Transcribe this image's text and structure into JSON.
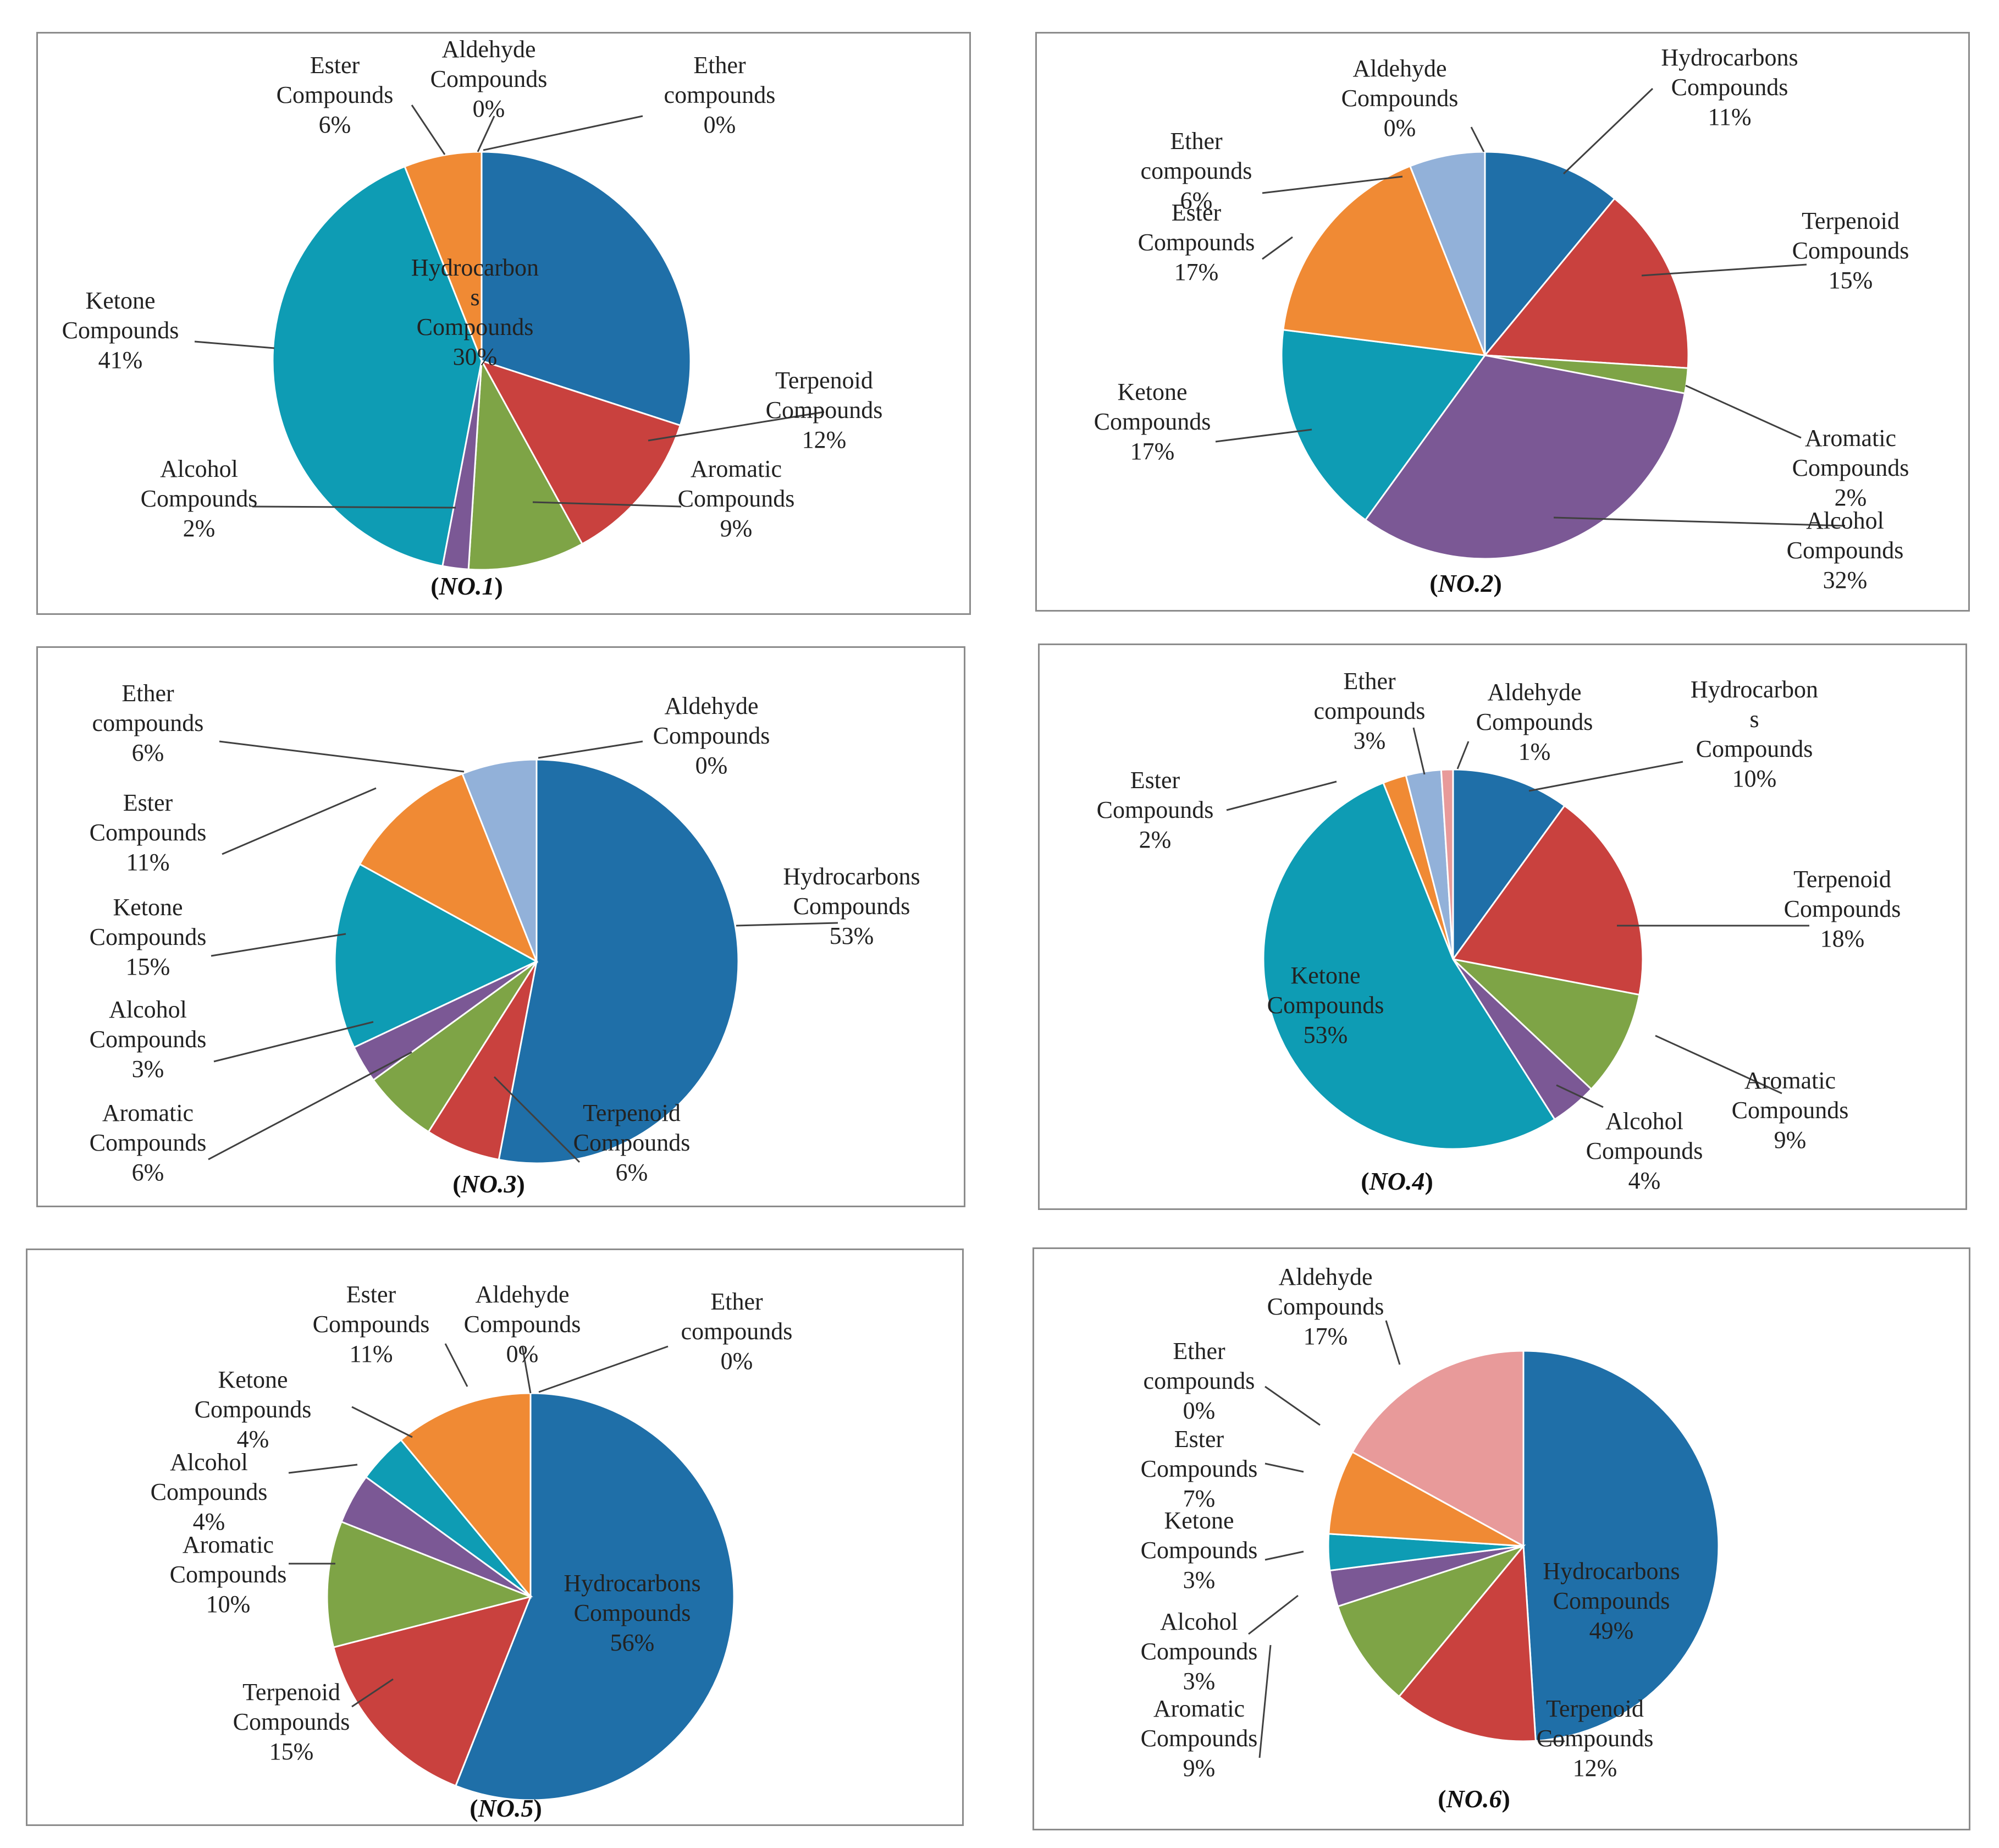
{
  "colors": {
    "Hydrocarbons Compounds": "#1f6fa8",
    "Terpenoid Compounds": "#c9413e",
    "Aromatic Compounds": "#7ea446",
    "Alcohol Compounds": "#7b5895",
    "Ketone Compounds": "#0e9cb4",
    "Ester Compounds": "#f08a34",
    "Ether compounds": "#92b1d9",
    "Aldehyde Compounds": "#e89a9a"
  },
  "chart_data": [
    {
      "type": "pie",
      "caption_prefix": "(",
      "caption_label": "NO.1",
      "caption_suffix": ")",
      "slices": [
        {
          "name": "Hydrocarbons Compounds",
          "label_lines": [
            "Hydrocarbon",
            "s",
            "Compounds"
          ],
          "value": 30,
          "pct": "30%"
        },
        {
          "name": "Terpenoid Compounds",
          "label_lines": [
            "Terpenoid",
            "Compounds"
          ],
          "value": 12,
          "pct": "12%"
        },
        {
          "name": "Aromatic Compounds",
          "label_lines": [
            "Aromatic",
            "Compounds"
          ],
          "value": 9,
          "pct": "9%"
        },
        {
          "name": "Alcohol Compounds",
          "label_lines": [
            "Alcohol",
            "Compounds"
          ],
          "value": 2,
          "pct": "2%"
        },
        {
          "name": "Ketone Compounds",
          "label_lines": [
            "Ketone",
            "Compounds"
          ],
          "value": 41,
          "pct": "41%"
        },
        {
          "name": "Ester Compounds",
          "label_lines": [
            "Ester",
            "Compounds"
          ],
          "value": 6,
          "pct": "6%"
        },
        {
          "name": "Aldehyde Compounds",
          "label_lines": [
            "Aldehyde",
            "Compounds"
          ],
          "value": 0,
          "pct": "0%"
        },
        {
          "name": "Ether compounds",
          "label_lines": [
            "Ether",
            "compounds"
          ],
          "value": 0,
          "pct": "0%"
        }
      ]
    },
    {
      "type": "pie",
      "caption_prefix": "(",
      "caption_label": "NO.2",
      "caption_suffix": ")",
      "slices": [
        {
          "name": "Hydrocarbons Compounds",
          "label_lines": [
            "Hydrocarbons",
            "Compounds"
          ],
          "value": 11,
          "pct": "11%"
        },
        {
          "name": "Terpenoid Compounds",
          "label_lines": [
            "Terpenoid",
            "Compounds"
          ],
          "value": 15,
          "pct": "15%"
        },
        {
          "name": "Aromatic Compounds",
          "label_lines": [
            "Aromatic",
            "Compounds"
          ],
          "value": 2,
          "pct": "2%"
        },
        {
          "name": "Alcohol Compounds",
          "label_lines": [
            "Alcohol",
            "Compounds"
          ],
          "value": 32,
          "pct": "32%"
        },
        {
          "name": "Ketone Compounds",
          "label_lines": [
            "Ketone",
            "Compounds"
          ],
          "value": 17,
          "pct": "17%"
        },
        {
          "name": "Ester Compounds",
          "label_lines": [
            "Ester",
            "Compounds"
          ],
          "value": 17,
          "pct": "17%"
        },
        {
          "name": "Ether compounds",
          "label_lines": [
            "Ether",
            "compounds"
          ],
          "value": 6,
          "pct": "6%"
        },
        {
          "name": "Aldehyde Compounds",
          "label_lines": [
            "Aldehyde",
            "Compounds"
          ],
          "value": 0,
          "pct": "0%"
        }
      ]
    },
    {
      "type": "pie",
      "caption_prefix": "(",
      "caption_label": "NO.3",
      "caption_suffix": ")",
      "slices": [
        {
          "name": "Hydrocarbons Compounds",
          "label_lines": [
            "Hydrocarbons",
            "Compounds"
          ],
          "value": 53,
          "pct": "53%"
        },
        {
          "name": "Terpenoid Compounds",
          "label_lines": [
            "Terpenoid",
            "Compounds"
          ],
          "value": 6,
          "pct": "6%"
        },
        {
          "name": "Aromatic Compounds",
          "label_lines": [
            "Aromatic",
            "Compounds"
          ],
          "value": 6,
          "pct": "6%"
        },
        {
          "name": "Alcohol Compounds",
          "label_lines": [
            "Alcohol",
            "Compounds"
          ],
          "value": 3,
          "pct": "3%"
        },
        {
          "name": "Ketone Compounds",
          "label_lines": [
            "Ketone",
            "Compounds"
          ],
          "value": 15,
          "pct": "15%"
        },
        {
          "name": "Ester Compounds",
          "label_lines": [
            "Ester",
            "Compounds"
          ],
          "value": 11,
          "pct": "11%"
        },
        {
          "name": "Ether compounds",
          "label_lines": [
            "Ether",
            "compounds"
          ],
          "value": 6,
          "pct": "6%"
        },
        {
          "name": "Aldehyde Compounds",
          "label_lines": [
            "Aldehyde",
            "Compounds"
          ],
          "value": 0,
          "pct": "0%"
        }
      ]
    },
    {
      "type": "pie",
      "caption_prefix": "(",
      "caption_label": "NO.4",
      "caption_suffix": ")",
      "slices": [
        {
          "name": "Hydrocarbons Compounds",
          "label_lines": [
            "Hydrocarbon",
            "s",
            "Compounds"
          ],
          "value": 10,
          "pct": "10%"
        },
        {
          "name": "Terpenoid Compounds",
          "label_lines": [
            "Terpenoid",
            "Compounds"
          ],
          "value": 18,
          "pct": "18%"
        },
        {
          "name": "Aromatic Compounds",
          "label_lines": [
            "Aromatic",
            "Compounds"
          ],
          "value": 9,
          "pct": "9%"
        },
        {
          "name": "Alcohol Compounds",
          "label_lines": [
            "Alcohol",
            "Compounds"
          ],
          "value": 4,
          "pct": "4%"
        },
        {
          "name": "Ketone Compounds",
          "label_lines": [
            "Ketone",
            "Compounds"
          ],
          "value": 53,
          "pct": "53%"
        },
        {
          "name": "Ester Compounds",
          "label_lines": [
            "Ester",
            "Compounds"
          ],
          "value": 2,
          "pct": "2%"
        },
        {
          "name": "Ether compounds",
          "label_lines": [
            "Ether",
            "compounds"
          ],
          "value": 3,
          "pct": "3%"
        },
        {
          "name": "Aldehyde Compounds",
          "label_lines": [
            "Aldehyde",
            "Compounds"
          ],
          "value": 1,
          "pct": "1%"
        }
      ]
    },
    {
      "type": "pie",
      "caption_prefix": "(",
      "caption_label": "NO.5",
      "caption_suffix": ")",
      "slices": [
        {
          "name": "Hydrocarbons Compounds",
          "label_lines": [
            "Hydrocarbons",
            "Compounds"
          ],
          "value": 56,
          "pct": "56%"
        },
        {
          "name": "Terpenoid Compounds",
          "label_lines": [
            "Terpenoid",
            "Compounds"
          ],
          "value": 15,
          "pct": "15%"
        },
        {
          "name": "Aromatic Compounds",
          "label_lines": [
            "Aromatic",
            "Compounds"
          ],
          "value": 10,
          "pct": "10%"
        },
        {
          "name": "Alcohol Compounds",
          "label_lines": [
            "Alcohol",
            "Compounds"
          ],
          "value": 4,
          "pct": "4%"
        },
        {
          "name": "Ketone Compounds",
          "label_lines": [
            "Ketone",
            "Compounds"
          ],
          "value": 4,
          "pct": "4%"
        },
        {
          "name": "Ester Compounds",
          "label_lines": [
            "Ester",
            "Compounds"
          ],
          "value": 11,
          "pct": "11%"
        },
        {
          "name": "Aldehyde Compounds",
          "label_lines": [
            "Aldehyde",
            "Compounds"
          ],
          "value": 0,
          "pct": "0%"
        },
        {
          "name": "Ether compounds",
          "label_lines": [
            "Ether",
            "compounds"
          ],
          "value": 0,
          "pct": "0%"
        }
      ]
    },
    {
      "type": "pie",
      "caption_prefix": "(",
      "caption_label": "NO.6",
      "caption_suffix": ")",
      "slices": [
        {
          "name": "Hydrocarbons Compounds",
          "label_lines": [
            "Hydrocarbons",
            "Compounds"
          ],
          "value": 49,
          "pct": "49%"
        },
        {
          "name": "Terpenoid Compounds",
          "label_lines": [
            "Terpenoid",
            "Compounds"
          ],
          "value": 12,
          "pct": "12%"
        },
        {
          "name": "Aromatic Compounds",
          "label_lines": [
            "Aromatic",
            "Compounds"
          ],
          "value": 9,
          "pct": "9%"
        },
        {
          "name": "Alcohol Compounds",
          "label_lines": [
            "Alcohol",
            "Compounds"
          ],
          "value": 3,
          "pct": "3%"
        },
        {
          "name": "Ketone Compounds",
          "label_lines": [
            "Ketone",
            "Compounds"
          ],
          "value": 3,
          "pct": "3%"
        },
        {
          "name": "Ester Compounds",
          "label_lines": [
            "Ester",
            "Compounds"
          ],
          "value": 7,
          "pct": "7%"
        },
        {
          "name": "Ether compounds",
          "label_lines": [
            "Ether",
            "compounds"
          ],
          "value": 0,
          "pct": "0%"
        },
        {
          "name": "Aldehyde Compounds",
          "label_lines": [
            "Aldehyde",
            "Compounds"
          ],
          "value": 17,
          "pct": "17%"
        }
      ]
    }
  ]
}
